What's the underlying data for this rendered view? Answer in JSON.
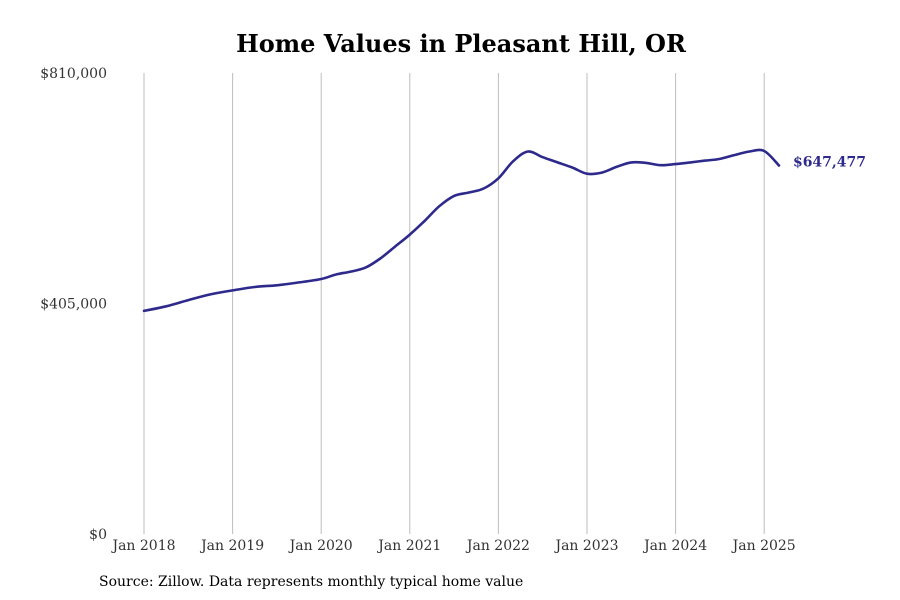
{
  "chart_data": {
    "type": "line",
    "title": "Home Values in Pleasant Hill, OR",
    "xlabel": "",
    "ylabel": "",
    "ylim": [
      0,
      810000
    ],
    "y_ticks": [
      "$0",
      "$405,000",
      "$810,000"
    ],
    "y_tick_values": [
      0,
      405000,
      810000
    ],
    "x_ticks": [
      "Jan 2018",
      "Jan 2019",
      "Jan 2020",
      "Jan 2021",
      "Jan 2022",
      "Jan 2023",
      "Jan 2024",
      "Jan 2025"
    ],
    "grid": "vertical",
    "line_color": "#2e2a8c",
    "end_label": "$647,477",
    "series": [
      {
        "x": [
          "2018-01",
          "2018-04",
          "2018-07",
          "2018-10",
          "2019-01",
          "2019-04",
          "2019-07",
          "2019-10",
          "2020-01",
          "2020-03",
          "2020-05",
          "2020-07",
          "2020-09",
          "2020-11",
          "2021-01",
          "2021-03",
          "2021-05",
          "2021-07",
          "2021-09",
          "2021-11",
          "2022-01",
          "2022-03",
          "2022-05",
          "2022-07",
          "2022-09",
          "2022-11",
          "2023-01",
          "2023-03",
          "2023-05",
          "2023-07",
          "2023-09",
          "2023-11",
          "2024-01",
          "2024-03",
          "2024-05",
          "2024-07",
          "2024-09",
          "2024-11",
          "2025-01",
          "2025-03"
        ],
        "values": [
          392000,
          400000,
          411000,
          421000,
          428000,
          434000,
          437000,
          442000,
          448000,
          456000,
          461000,
          468000,
          484000,
          505000,
          526000,
          550000,
          576000,
          594000,
          600000,
          607000,
          625000,
          655000,
          672000,
          662000,
          653000,
          644000,
          633000,
          635000,
          645000,
          653000,
          652000,
          648000,
          650000,
          653000,
          656000,
          659000,
          666000,
          672000,
          673000,
          647477
        ]
      }
    ],
    "source": "Source: Zillow. Data represents monthly typical home value"
  }
}
